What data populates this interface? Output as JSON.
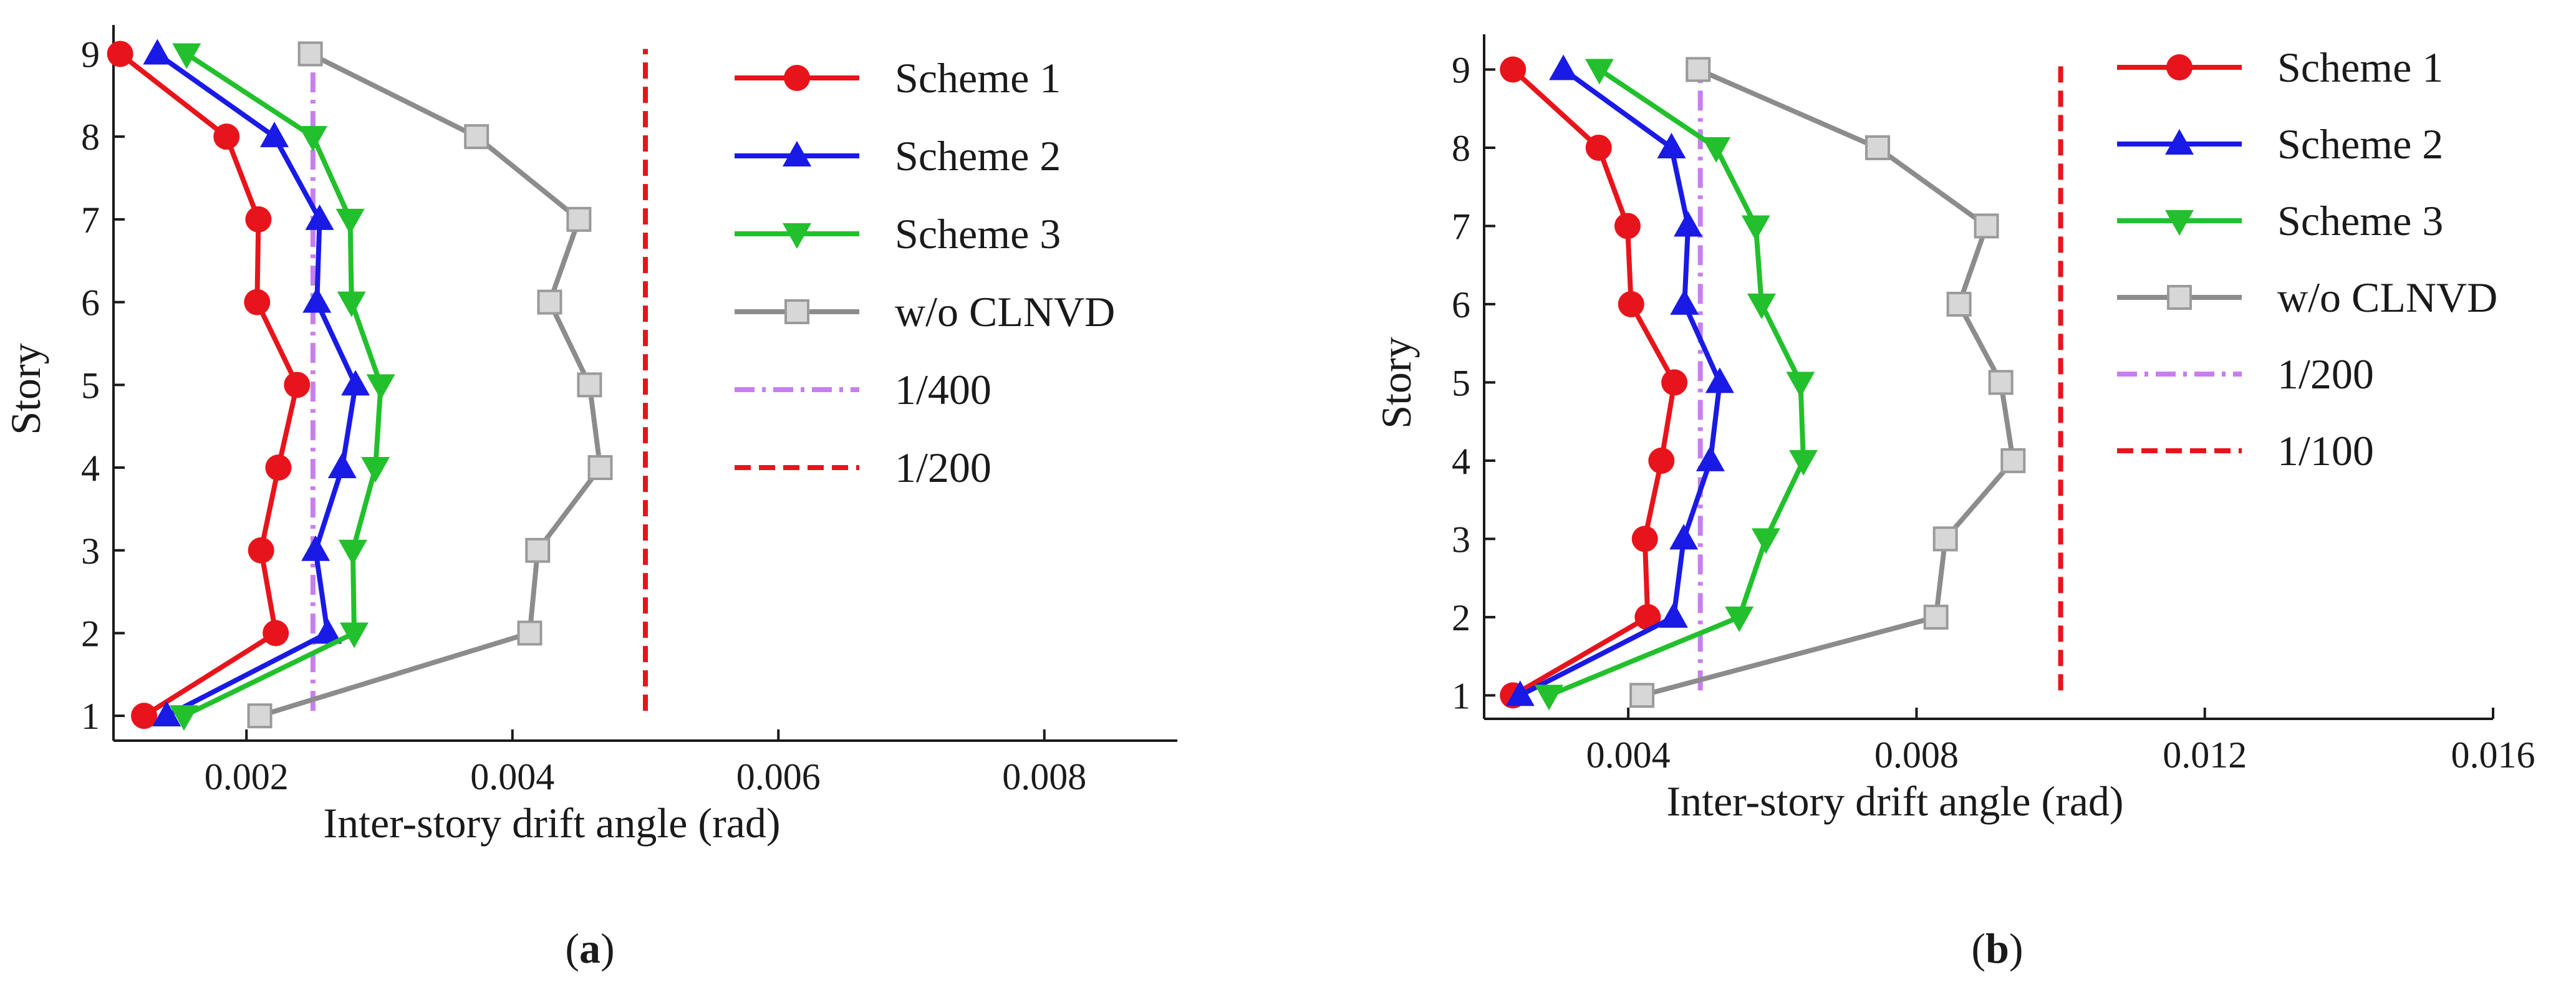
{
  "chart_data": [
    {
      "panel": "a",
      "caption_left": "(",
      "caption_label": "a",
      "caption_right": ")",
      "type": "line",
      "xlabel": "Inter-story drift angle (rad)",
      "ylabel": "Story",
      "xlim": [
        0.001,
        0.009
      ],
      "ylim": [
        0.7,
        9.35
      ],
      "xticks": [
        0.002,
        0.004,
        0.006,
        0.008
      ],
      "xtick_labels": [
        "0.002",
        "0.004",
        "0.006",
        "0.008"
      ],
      "yticks": [
        1,
        2,
        3,
        4,
        5,
        6,
        7,
        8,
        9
      ],
      "ytick_labels": [
        "1",
        "2",
        "3",
        "4",
        "5",
        "6",
        "7",
        "8",
        "9"
      ],
      "stories": [
        1,
        2,
        3,
        4,
        5,
        6,
        7,
        8,
        9
      ],
      "series": [
        {
          "name": "Scheme 1",
          "color": "#e8141b",
          "marker": "circle",
          "values": [
            0.00123,
            0.00222,
            0.00211,
            0.00224,
            0.00238,
            0.00208,
            0.00209,
            0.00185,
            0.00105
          ]
        },
        {
          "name": "Scheme 2",
          "color": "#1a1ae6",
          "marker": "triangle-up",
          "values": [
            0.0014,
            0.00261,
            0.00252,
            0.00272,
            0.00282,
            0.00253,
            0.00255,
            0.00221,
            0.00133
          ]
        },
        {
          "name": "Scheme 3",
          "color": "#22c02c",
          "marker": "triangle-down",
          "values": [
            0.00153,
            0.00281,
            0.0028,
            0.00297,
            0.00301,
            0.00279,
            0.00278,
            0.0025,
            0.00155
          ]
        },
        {
          "name": "w/o CLNVD",
          "color": "#8c8c8c",
          "marker": "square",
          "values": [
            0.0021,
            0.00413,
            0.00419,
            0.00466,
            0.00458,
            0.00428,
            0.0045,
            0.00373,
            0.00248
          ]
        }
      ],
      "reference_lines": [
        {
          "name": "1/400",
          "value": 0.0025,
          "color": "#c77ff0",
          "style": "dash-dot"
        },
        {
          "name": "1/200",
          "value": 0.005,
          "color": "#e8141b",
          "style": "dashed"
        }
      ]
    },
    {
      "panel": "b",
      "caption_left": "(",
      "caption_label": "b",
      "caption_right": ")",
      "type": "line",
      "xlabel": "Inter-story drift angle (rad)",
      "ylabel": "Story",
      "xlim": [
        0.002,
        0.016
      ],
      "ylim": [
        0.7,
        9.45
      ],
      "xticks": [
        0.004,
        0.008,
        0.012,
        0.016
      ],
      "xtick_labels": [
        "0.004",
        "0.008",
        "0.012",
        "0.016"
      ],
      "yticks": [
        1,
        2,
        3,
        4,
        5,
        6,
        7,
        8,
        9
      ],
      "ytick_labels": [
        "1",
        "2",
        "3",
        "4",
        "5",
        "6",
        "7",
        "8",
        "9"
      ],
      "stories": [
        1,
        2,
        3,
        4,
        5,
        6,
        7,
        8,
        9
      ],
      "series": [
        {
          "name": "Scheme 1",
          "color": "#e8141b",
          "marker": "circle",
          "values": [
            0.0024,
            0.00427,
            0.00423,
            0.00446,
            0.00464,
            0.00404,
            0.00399,
            0.00359,
            0.0024
          ]
        },
        {
          "name": "Scheme 2",
          "color": "#1a1ae6",
          "marker": "triangle-up",
          "values": [
            0.0025,
            0.00463,
            0.00477,
            0.00514,
            0.00527,
            0.00478,
            0.00483,
            0.0046,
            0.0031
          ]
        },
        {
          "name": "Scheme 3",
          "color": "#22c02c",
          "marker": "triangle-down",
          "values": [
            0.0029,
            0.00554,
            0.00591,
            0.00643,
            0.00639,
            0.00585,
            0.00577,
            0.00522,
            0.0036
          ]
        },
        {
          "name": "w/o CLNVD",
          "color": "#8c8c8c",
          "marker": "square",
          "values": [
            0.00419,
            0.00827,
            0.0084,
            0.00934,
            0.00917,
            0.00859,
            0.00897,
            0.00746,
            0.00497
          ]
        }
      ],
      "reference_lines": [
        {
          "name": "1/200",
          "value": 0.005,
          "color": "#c77ff0",
          "style": "dash-dot"
        },
        {
          "name": "1/100",
          "value": 0.01,
          "color": "#e8141b",
          "style": "dashed"
        }
      ]
    }
  ]
}
